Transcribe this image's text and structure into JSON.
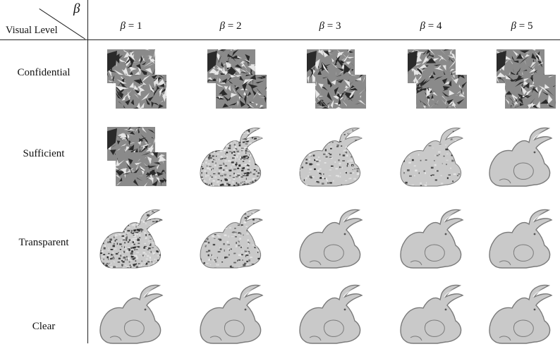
{
  "header": {
    "beta_symbol": "β",
    "row_axis_label": "Visual Level",
    "columns": [
      {
        "symbol": "β",
        "eq": " = 1"
      },
      {
        "symbol": "β",
        "eq": " = 2"
      },
      {
        "symbol": "β",
        "eq": " = 3"
      },
      {
        "symbol": "β",
        "eq": " = 4"
      },
      {
        "symbol": "β",
        "eq": " = 5"
      }
    ]
  },
  "rows": [
    {
      "label": "Confidential",
      "states": [
        "scrambled",
        "scrambled",
        "scrambled",
        "scrambled",
        "scrambled"
      ]
    },
    {
      "label": "Sufficient",
      "states": [
        "scrambled",
        "noisy-heavy",
        "noisy-light",
        "textured",
        "smooth"
      ]
    },
    {
      "label": "Transparent",
      "states": [
        "noisy-heavy",
        "noisy-light",
        "smooth",
        "smooth",
        "smooth"
      ]
    },
    {
      "label": "Clear",
      "states": [
        "smooth",
        "smooth",
        "smooth",
        "smooth",
        "smooth"
      ]
    }
  ],
  "colors": {
    "bunny_fill": "#c9c9c9",
    "bunny_stroke": "#7a7a7a",
    "scramble_dark": "#2a2a2a",
    "scramble_light": "#e6e6e6"
  }
}
